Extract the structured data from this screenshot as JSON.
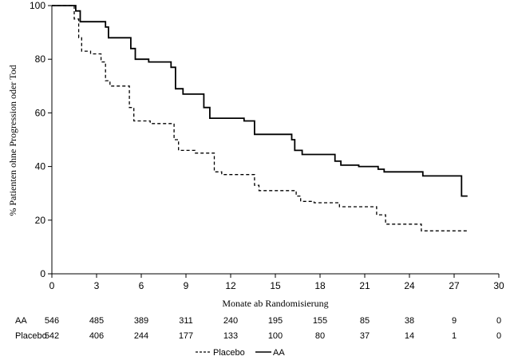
{
  "chart_data": {
    "type": "line",
    "chart_kind": "kaplan-meier step curve",
    "xlabel": "Monate ab Randomisierung",
    "ylabel": "% Patienten ohne Progression oder Tod",
    "xlim": [
      0,
      30
    ],
    "ylim": [
      0,
      100
    ],
    "x_ticks": [
      0,
      3,
      6,
      9,
      12,
      15,
      18,
      21,
      24,
      27,
      30
    ],
    "y_ticks": [
      0,
      20,
      40,
      60,
      80,
      100
    ],
    "grid": false,
    "legend_position": "bottom-center",
    "series": [
      {
        "name": "AA",
        "style": "solid",
        "color": "#000000",
        "points": [
          [
            0,
            100
          ],
          [
            1.6,
            100
          ],
          [
            1.6,
            98
          ],
          [
            1.9,
            98
          ],
          [
            1.9,
            94
          ],
          [
            3.6,
            94
          ],
          [
            3.6,
            92
          ],
          [
            3.8,
            92
          ],
          [
            3.8,
            88
          ],
          [
            5.3,
            88
          ],
          [
            5.3,
            84
          ],
          [
            5.6,
            84
          ],
          [
            5.6,
            80
          ],
          [
            6.5,
            80
          ],
          [
            6.5,
            79
          ],
          [
            8.0,
            79
          ],
          [
            8.0,
            77
          ],
          [
            8.3,
            77
          ],
          [
            8.3,
            69
          ],
          [
            8.8,
            69
          ],
          [
            8.8,
            67
          ],
          [
            10.2,
            67
          ],
          [
            10.2,
            62
          ],
          [
            10.6,
            62
          ],
          [
            10.6,
            58
          ],
          [
            12.9,
            58
          ],
          [
            12.9,
            57
          ],
          [
            13.6,
            57
          ],
          [
            13.6,
            52
          ],
          [
            16.1,
            52
          ],
          [
            16.1,
            50
          ],
          [
            16.3,
            50
          ],
          [
            16.3,
            46
          ],
          [
            16.8,
            46
          ],
          [
            16.8,
            44.5
          ],
          [
            19.0,
            44.5
          ],
          [
            19.0,
            42
          ],
          [
            19.4,
            42
          ],
          [
            19.4,
            40.5
          ],
          [
            20.6,
            40.5
          ],
          [
            20.6,
            40
          ],
          [
            21.9,
            40
          ],
          [
            21.9,
            39
          ],
          [
            22.3,
            39
          ],
          [
            22.3,
            38
          ],
          [
            24.9,
            38
          ],
          [
            24.9,
            36.5
          ],
          [
            27.5,
            36.5
          ],
          [
            27.5,
            29
          ],
          [
            27.9,
            29
          ]
        ]
      },
      {
        "name": "Placebo",
        "style": "dashed",
        "color": "#000000",
        "points": [
          [
            0,
            100
          ],
          [
            1.5,
            100
          ],
          [
            1.5,
            95
          ],
          [
            1.8,
            95
          ],
          [
            1.8,
            88
          ],
          [
            2.0,
            88
          ],
          [
            2.0,
            83
          ],
          [
            2.6,
            83
          ],
          [
            2.6,
            82
          ],
          [
            3.3,
            82
          ],
          [
            3.3,
            79
          ],
          [
            3.6,
            79
          ],
          [
            3.6,
            72
          ],
          [
            3.9,
            72
          ],
          [
            3.9,
            70
          ],
          [
            5.2,
            70
          ],
          [
            5.2,
            62
          ],
          [
            5.5,
            62
          ],
          [
            5.5,
            57
          ],
          [
            6.6,
            57
          ],
          [
            6.6,
            56
          ],
          [
            8.2,
            56
          ],
          [
            8.2,
            50
          ],
          [
            8.5,
            50
          ],
          [
            8.5,
            46
          ],
          [
            9.6,
            46
          ],
          [
            9.6,
            45
          ],
          [
            10.9,
            45
          ],
          [
            10.9,
            38
          ],
          [
            11.4,
            38
          ],
          [
            11.4,
            37
          ],
          [
            13.6,
            37
          ],
          [
            13.6,
            33
          ],
          [
            13.9,
            33
          ],
          [
            13.9,
            31
          ],
          [
            16.4,
            31
          ],
          [
            16.4,
            29
          ],
          [
            16.7,
            29
          ],
          [
            16.7,
            27
          ],
          [
            17.6,
            27
          ],
          [
            17.6,
            26.5
          ],
          [
            19.3,
            26.5
          ],
          [
            19.3,
            25
          ],
          [
            21.8,
            25
          ],
          [
            21.8,
            22
          ],
          [
            22.4,
            22
          ],
          [
            22.4,
            18.5
          ],
          [
            24.8,
            18.5
          ],
          [
            24.8,
            16
          ],
          [
            27.9,
            16
          ]
        ]
      }
    ],
    "risk_table": {
      "x": [
        0,
        3,
        6,
        9,
        12,
        15,
        18,
        21,
        24,
        27,
        30
      ],
      "rows": [
        {
          "label": "AA",
          "values": [
            "546",
            "485",
            "389",
            "311",
            "240",
            "195",
            "155",
            "85",
            "38",
            "9",
            "0"
          ]
        },
        {
          "label": "Placebo",
          "values": [
            "542",
            "406",
            "244",
            "177",
            "133",
            "100",
            "80",
            "37",
            "14",
            "1",
            "0"
          ]
        }
      ]
    },
    "legend": [
      {
        "label": "Placebo",
        "style": "dashed"
      },
      {
        "label": "AA",
        "style": "solid"
      }
    ]
  }
}
